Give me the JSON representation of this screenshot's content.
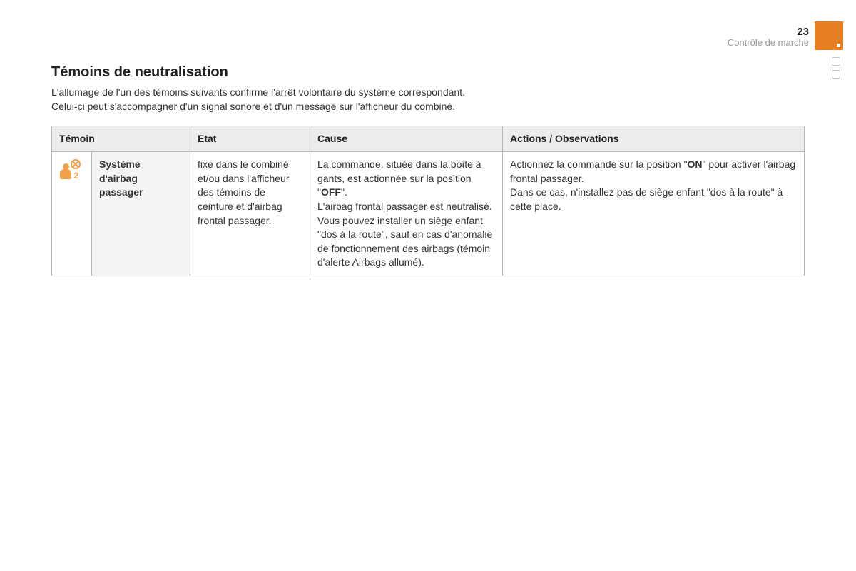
{
  "page": {
    "number": "23",
    "section": "Contrôle de marche",
    "accent_color": "#e67e22",
    "icon_color": "#f0a04b",
    "border_color": "#b5b5b5",
    "header_bg": "#ececec"
  },
  "title": "Témoins de neutralisation",
  "intro_line1": "L'allumage de l'un des témoins suivants confirme l'arrêt volontaire du système correspondant.",
  "intro_line2": "Celui-ci peut s'accompagner d'un signal sonore et d'un message sur l'afficheur du combiné.",
  "table": {
    "headers": {
      "temoin": "Témoin",
      "etat": "Etat",
      "cause": "Cause",
      "actions": "Actions / Observations"
    },
    "row": {
      "icon_name": "passenger-airbag-off-icon",
      "icon_number": "2",
      "label_l1": "Système",
      "label_l2": "d'airbag",
      "label_l3": "passager",
      "etat": "fixe dans le combiné et/ou dans l'afficheur des témoins de ceinture et d'airbag frontal passager.",
      "cause_p1a": "La commande, située dans la boîte à gants, est actionnée sur la position \"",
      "cause_off": "OFF",
      "cause_p1b": "\".",
      "cause_p2": "L'airbag frontal passager est neutralisé.",
      "cause_p3": "Vous pouvez installer un siège enfant \"dos à la route\", sauf en cas d'anomalie de fonctionnement des airbags (témoin d'alerte Airbags allumé).",
      "actions_p1a": "Actionnez la commande sur la position \"",
      "actions_on": "ON",
      "actions_p1b": "\" pour activer l'airbag frontal passager.",
      "actions_p2": "Dans ce cas, n'installez pas de siège enfant \"dos à la route\" à cette place."
    }
  }
}
